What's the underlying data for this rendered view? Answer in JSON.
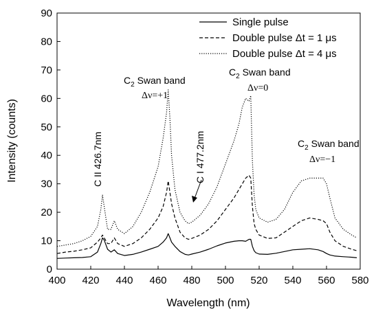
{
  "chart_data": {
    "type": "line",
    "xlabel": "Wavelength (nm)",
    "ylabel": "Intensity (counts)",
    "xlim": [
      400,
      580
    ],
    "ylim": [
      0,
      90
    ],
    "x_ticks": [
      400,
      420,
      440,
      460,
      480,
      500,
      520,
      540,
      560,
      580
    ],
    "y_ticks": [
      0,
      10,
      20,
      30,
      40,
      50,
      60,
      70,
      80,
      90
    ],
    "legend_position": "top-right",
    "series": [
      {
        "name": "Single pulse",
        "line_style": "solid",
        "x": [
          400,
          405,
          410,
          415,
          420,
          424,
          426,
          427,
          428,
          430,
          432,
          434,
          436,
          440,
          445,
          450,
          455,
          460,
          463,
          465,
          466,
          467,
          468,
          470,
          473,
          476,
          478,
          480,
          485,
          490,
          495,
          500,
          505,
          508,
          510,
          512,
          514,
          515,
          516,
          517,
          518,
          520,
          525,
          530,
          535,
          540,
          545,
          550,
          555,
          558,
          560,
          562,
          565,
          570,
          575,
          578
        ],
        "y": [
          3.8,
          3.9,
          4.0,
          4.1,
          4.4,
          6.0,
          9.0,
          11.0,
          10.2,
          7.0,
          6.0,
          6.8,
          5.5,
          4.8,
          5.2,
          6.0,
          7.0,
          8.0,
          9.5,
          11.0,
          12.5,
          11.0,
          9.5,
          8.0,
          6.2,
          5.2,
          5.0,
          5.3,
          6.0,
          7.0,
          8.2,
          9.2,
          9.8,
          10.0,
          10.0,
          9.8,
          10.5,
          10.5,
          8.0,
          6.5,
          5.8,
          5.3,
          5.2,
          5.6,
          6.2,
          6.8,
          7.0,
          7.2,
          6.8,
          6.2,
          5.5,
          5.0,
          4.6,
          4.4,
          4.2,
          4.0
        ]
      },
      {
        "name": "Double pulse Δt = 1 μs",
        "line_style": "dashed",
        "x": [
          400,
          405,
          410,
          415,
          420,
          424,
          426,
          427,
          428,
          430,
          432,
          434,
          436,
          440,
          445,
          450,
          455,
          460,
          463,
          465,
          466,
          467,
          468,
          470,
          473,
          476,
          478,
          480,
          485,
          490,
          495,
          500,
          505,
          508,
          510,
          512,
          514,
          515,
          516,
          517,
          518,
          520,
          525,
          530,
          535,
          540,
          545,
          550,
          555,
          558,
          560,
          562,
          565,
          570,
          575,
          578
        ],
        "y": [
          5.5,
          6.0,
          6.3,
          6.8,
          7.5,
          9.5,
          11.0,
          12.0,
          11.0,
          9.0,
          9.0,
          11.0,
          9.0,
          8.0,
          9.0,
          11.0,
          14.0,
          18.0,
          22.0,
          27.0,
          31.0,
          27.0,
          23.0,
          18.0,
          13.0,
          11.0,
          10.5,
          10.8,
          12.0,
          14.0,
          17.0,
          21.0,
          25.0,
          28.0,
          30.0,
          32.0,
          33.0,
          32.0,
          22.0,
          16.0,
          14.0,
          12.0,
          10.8,
          11.0,
          13.0,
          15.0,
          17.0,
          18.0,
          17.5,
          17.0,
          16.0,
          13.0,
          10.0,
          8.0,
          7.0,
          6.5
        ]
      },
      {
        "name": "Double pulse Δt = 4 μs",
        "line_style": "dotted",
        "x": [
          400,
          405,
          410,
          415,
          420,
          424,
          426,
          427,
          428,
          430,
          432,
          434,
          436,
          440,
          445,
          450,
          455,
          460,
          463,
          465,
          466,
          467,
          468,
          470,
          473,
          476,
          478,
          480,
          485,
          490,
          495,
          500,
          505,
          508,
          510,
          512,
          514,
          515,
          516,
          517,
          518,
          520,
          525,
          530,
          535,
          540,
          545,
          550,
          555,
          558,
          560,
          562,
          565,
          570,
          575,
          578
        ],
        "y": [
          8.0,
          8.5,
          9.0,
          10.0,
          11.5,
          15.0,
          21.0,
          26.0,
          22.0,
          14.0,
          14.0,
          17.0,
          14.0,
          12.5,
          15.0,
          20.0,
          27.0,
          36.0,
          46.0,
          55.0,
          63.0,
          53.0,
          40.0,
          28.0,
          20.0,
          17.0,
          16.0,
          16.5,
          19.0,
          23.0,
          29.0,
          37.0,
          45.0,
          51.0,
          57.0,
          60.0,
          59.0,
          61.0,
          38.0,
          26.0,
          21.0,
          18.0,
          16.5,
          17.5,
          21.0,
          27.0,
          31.0,
          32.0,
          32.0,
          32.0,
          30.0,
          25.0,
          18.0,
          14.0,
          12.0,
          11.0
        ]
      }
    ],
    "annotations": {
      "cii": "C II 426.7nm",
      "ci": "C I 477.2nm",
      "c2": "C",
      "c2_sub": "2",
      "swan": " Swan band",
      "dv_plus1": "Δν=+1",
      "dv_0": "Δν=0",
      "dv_minus1": "Δν=−1"
    }
  }
}
